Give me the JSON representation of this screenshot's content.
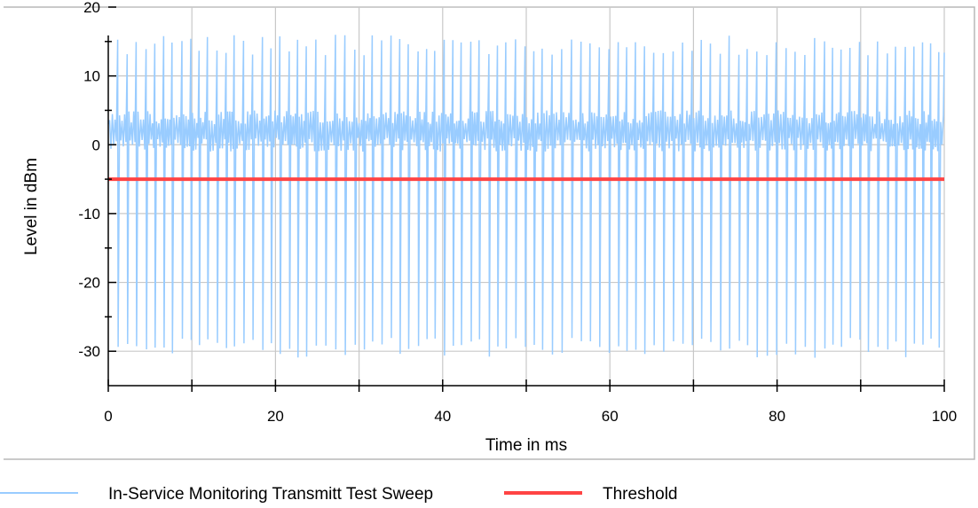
{
  "chart_data": {
    "type": "line",
    "xlabel": "Time in ms",
    "ylabel": "Level in dBm",
    "xlim": [
      0,
      100
    ],
    "ylim": [
      -35,
      20
    ],
    "x_ticks": [
      0,
      20,
      40,
      60,
      80,
      100
    ],
    "x_minor_ticks": [
      10,
      30,
      50,
      70,
      90
    ],
    "y_ticks": [
      20,
      10,
      0,
      -10,
      -20,
      -30
    ],
    "y_minor_ticks": [
      15,
      5,
      -5,
      -15,
      -25
    ],
    "grid": true,
    "legend_position": "bottom",
    "series": [
      {
        "name": "In-Service Monitoring Transmitt Test Sweep",
        "color": "#99ccff",
        "envelope": {
          "burst_high_dbm": [
            13,
            16
          ],
          "body_high_dbm": [
            3,
            5
          ],
          "body_low_dbm": [
            -1,
            1
          ],
          "burst_low_dbm": [
            -31,
            -28
          ]
        },
        "sample_x": [
          0,
          12.5,
          25,
          37.5,
          50,
          62.5,
          75,
          87.5,
          100
        ],
        "sample_y": [
          15,
          -29,
          4,
          -30,
          15,
          -28,
          3,
          -31,
          15
        ]
      },
      {
        "name": "Threshold",
        "color": "#ff4444",
        "x": [
          0,
          100
        ],
        "y": [
          -5,
          -5
        ]
      }
    ]
  }
}
